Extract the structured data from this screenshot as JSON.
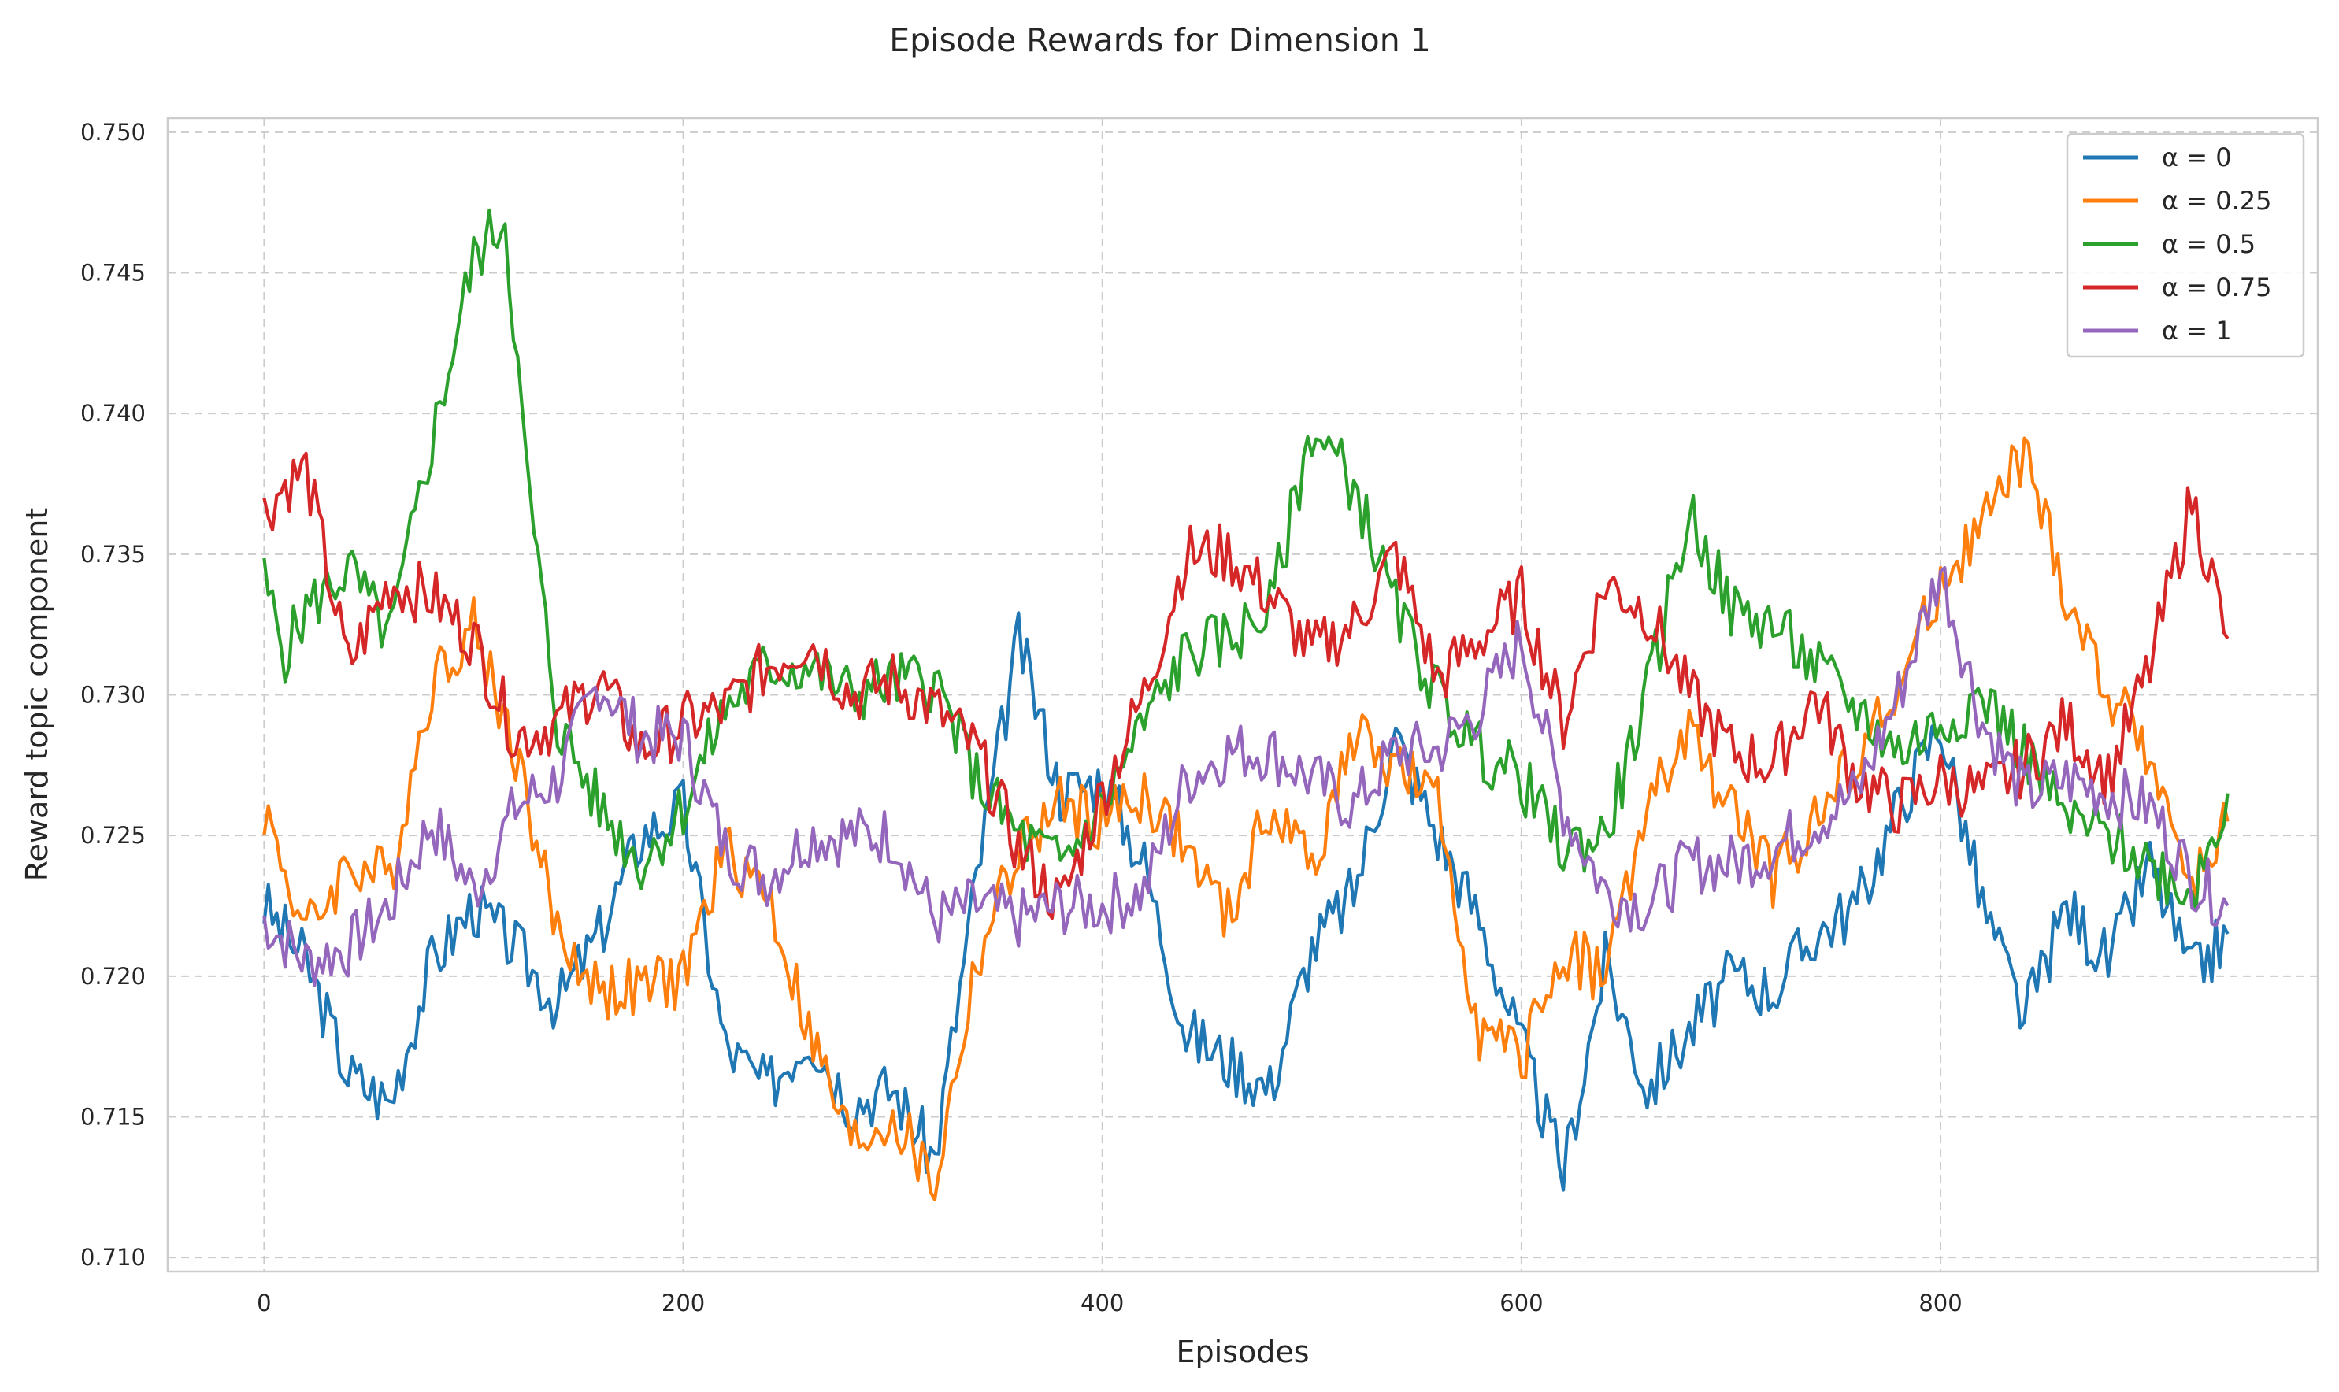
{
  "chart_data": {
    "type": "line",
    "title": "Episode Rewards for Dimension 1",
    "xlabel": "Episodes",
    "ylabel": "Reward topic component",
    "xlim": [
      -46,
      980
    ],
    "ylim": [
      0.7095,
      0.7505
    ],
    "xticks": [
      0,
      200,
      400,
      600,
      800
    ],
    "yticks": [
      0.71,
      0.715,
      0.72,
      0.725,
      0.73,
      0.735,
      0.74,
      0.745,
      0.75
    ],
    "ytick_labels": [
      "0.710",
      "0.715",
      "0.720",
      "0.725",
      "0.730",
      "0.735",
      "0.740",
      "0.745",
      "0.750"
    ],
    "grid": true,
    "legend_position": "top-right",
    "series": [
      {
        "name": "α = 0",
        "color": "#1f77b4",
        "x": [
          0,
          20,
          40,
          60,
          80,
          100,
          120,
          140,
          160,
          180,
          200,
          220,
          240,
          260,
          280,
          300,
          320,
          340,
          360,
          380,
          400,
          420,
          440,
          460,
          480,
          500,
          520,
          540,
          560,
          580,
          600,
          620,
          640,
          660,
          680,
          700,
          720,
          740,
          760,
          780,
          800,
          820,
          840,
          860,
          880,
          900,
          920,
          937
        ],
        "values": [
          0.7225,
          0.7205,
          0.7165,
          0.7155,
          0.7205,
          0.7225,
          0.721,
          0.719,
          0.7215,
          0.725,
          0.726,
          0.7175,
          0.716,
          0.718,
          0.7155,
          0.716,
          0.7135,
          0.7235,
          0.732,
          0.7265,
          0.727,
          0.724,
          0.718,
          0.717,
          0.716,
          0.721,
          0.723,
          0.7285,
          0.725,
          0.722,
          0.7175,
          0.713,
          0.7205,
          0.716,
          0.718,
          0.72,
          0.7195,
          0.7215,
          0.7225,
          0.726,
          0.729,
          0.7225,
          0.7185,
          0.7225,
          0.7205,
          0.724,
          0.72,
          0.7215
        ]
      },
      {
        "name": "α = 0.25",
        "color": "#ff7f0e",
        "x": [
          0,
          20,
          40,
          60,
          80,
          100,
          120,
          140,
          160,
          180,
          200,
          220,
          240,
          260,
          280,
          300,
          320,
          340,
          360,
          380,
          400,
          420,
          440,
          460,
          480,
          500,
          520,
          540,
          560,
          580,
          600,
          620,
          640,
          660,
          680,
          700,
          720,
          740,
          760,
          780,
          800,
          820,
          840,
          860,
          880,
          900,
          920,
          937
        ],
        "values": [
          0.726,
          0.7215,
          0.724,
          0.7235,
          0.7305,
          0.7325,
          0.728,
          0.7215,
          0.7195,
          0.7195,
          0.72,
          0.7245,
          0.723,
          0.718,
          0.714,
          0.715,
          0.7125,
          0.7205,
          0.7245,
          0.726,
          0.7255,
          0.7265,
          0.7245,
          0.722,
          0.726,
          0.724,
          0.7285,
          0.7275,
          0.726,
          0.718,
          0.717,
          0.721,
          0.72,
          0.726,
          0.7285,
          0.726,
          0.7235,
          0.7255,
          0.728,
          0.73,
          0.734,
          0.736,
          0.7385,
          0.7335,
          0.73,
          0.728,
          0.723,
          0.7255
        ]
      },
      {
        "name": "α = 0.5",
        "color": "#2ca02c",
        "x": [
          0,
          10,
          20,
          40,
          60,
          80,
          100,
          115,
          125,
          140,
          160,
          180,
          200,
          220,
          240,
          260,
          280,
          300,
          320,
          340,
          360,
          380,
          400,
          420,
          440,
          460,
          480,
          500,
          520,
          540,
          560,
          580,
          600,
          620,
          640,
          660,
          680,
          700,
          720,
          740,
          760,
          780,
          800,
          820,
          840,
          860,
          880,
          900,
          920,
          937
        ],
        "values": [
          0.734,
          0.7315,
          0.733,
          0.7345,
          0.732,
          0.739,
          0.7455,
          0.747,
          0.738,
          0.729,
          0.726,
          0.724,
          0.726,
          0.7295,
          0.731,
          0.731,
          0.73,
          0.7305,
          0.7305,
          0.727,
          0.725,
          0.724,
          0.726,
          0.729,
          0.7315,
          0.732,
          0.733,
          0.7395,
          0.7375,
          0.733,
          0.73,
          0.728,
          0.727,
          0.7245,
          0.725,
          0.73,
          0.7365,
          0.733,
          0.7325,
          0.731,
          0.7295,
          0.728,
          0.729,
          0.73,
          0.728,
          0.7255,
          0.725,
          0.724,
          0.723,
          0.7265
        ]
      },
      {
        "name": "α = 0.75",
        "color": "#d62728",
        "x": [
          0,
          10,
          20,
          40,
          60,
          80,
          100,
          120,
          140,
          160,
          180,
          200,
          220,
          240,
          260,
          280,
          300,
          320,
          340,
          360,
          380,
          400,
          420,
          440,
          460,
          480,
          500,
          520,
          540,
          560,
          580,
          600,
          620,
          640,
          660,
          680,
          700,
          720,
          740,
          760,
          780,
          800,
          820,
          840,
          860,
          880,
          900,
          920,
          937
        ],
        "values": [
          0.7365,
          0.7375,
          0.738,
          0.731,
          0.734,
          0.7335,
          0.732,
          0.7285,
          0.729,
          0.7305,
          0.728,
          0.729,
          0.7295,
          0.731,
          0.732,
          0.73,
          0.7305,
          0.7295,
          0.728,
          0.7245,
          0.7225,
          0.7265,
          0.73,
          0.735,
          0.735,
          0.7335,
          0.7315,
          0.7325,
          0.735,
          0.7305,
          0.732,
          0.7335,
          0.729,
          0.734,
          0.733,
          0.73,
          0.728,
          0.7275,
          0.73,
          0.727,
          0.726,
          0.727,
          0.7265,
          0.7275,
          0.729,
          0.727,
          0.731,
          0.737,
          0.732
        ]
      },
      {
        "name": "α = 1",
        "color": "#9467bd",
        "x": [
          0,
          20,
          40,
          60,
          80,
          100,
          120,
          140,
          160,
          180,
          200,
          220,
          240,
          260,
          280,
          300,
          320,
          340,
          360,
          380,
          400,
          420,
          440,
          460,
          480,
          500,
          520,
          540,
          560,
          580,
          600,
          620,
          640,
          660,
          680,
          700,
          720,
          740,
          760,
          780,
          800,
          820,
          840,
          860,
          880,
          900,
          920,
          937
        ],
        "values": [
          0.722,
          0.7205,
          0.721,
          0.7225,
          0.7255,
          0.723,
          0.726,
          0.727,
          0.7305,
          0.7285,
          0.7285,
          0.7245,
          0.7235,
          0.725,
          0.725,
          0.725,
          0.722,
          0.7225,
          0.722,
          0.7225,
          0.7225,
          0.723,
          0.727,
          0.728,
          0.728,
          0.727,
          0.726,
          0.728,
          0.728,
          0.7295,
          0.732,
          0.726,
          0.723,
          0.7225,
          0.724,
          0.724,
          0.7245,
          0.7255,
          0.7265,
          0.73,
          0.7345,
          0.729,
          0.7265,
          0.727,
          0.7265,
          0.726,
          0.7235,
          0.7225
        ]
      }
    ]
  }
}
